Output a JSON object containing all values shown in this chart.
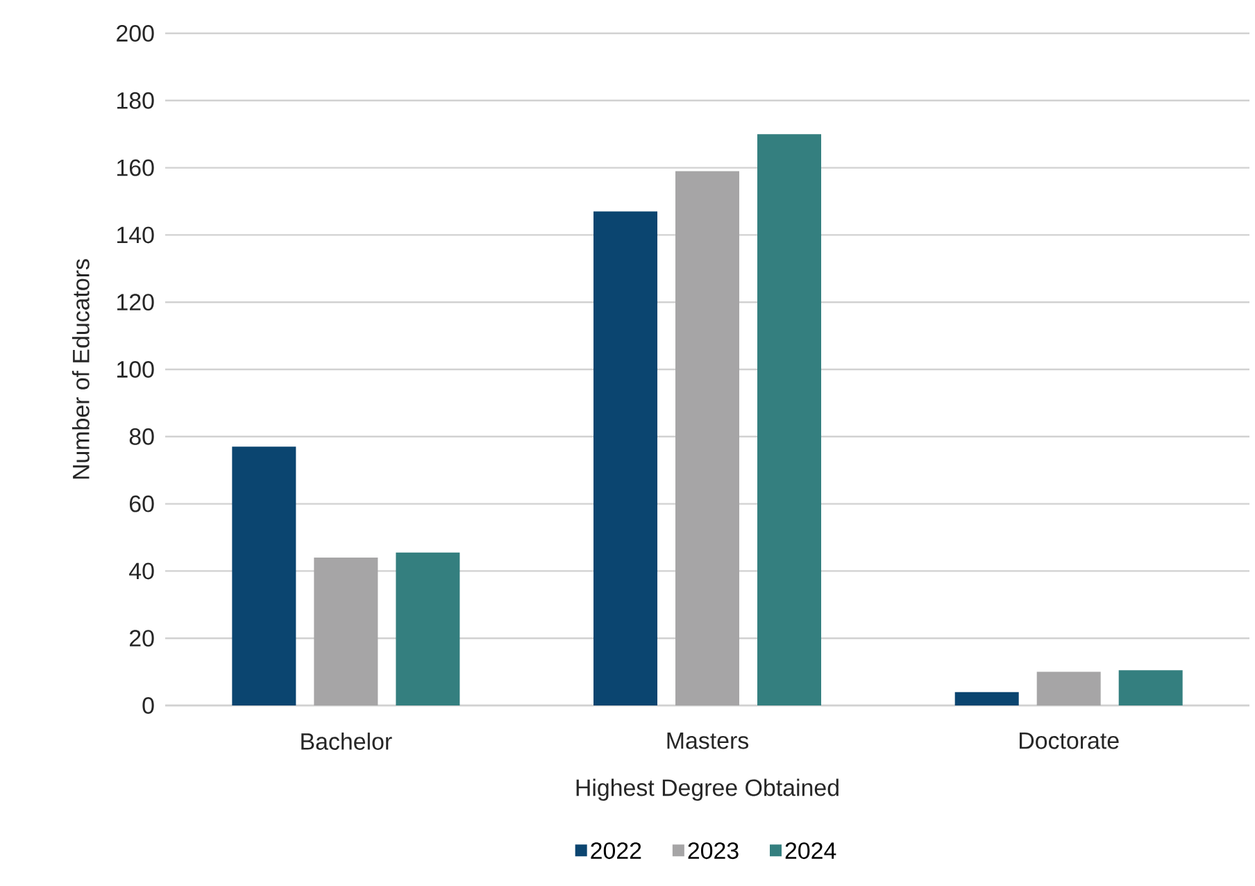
{
  "chart_data": {
    "type": "bar",
    "xlabel": "Highest Degree Obtained",
    "ylabel": "Number of Educators",
    "categories": [
      "Bachelor",
      "Masters",
      "Doctorate"
    ],
    "series": [
      {
        "name": "2022",
        "color": "#0b4570",
        "values": [
          77,
          147,
          4
        ]
      },
      {
        "name": "2023",
        "color": "#a6a5a6",
        "values": [
          44,
          159,
          10
        ]
      },
      {
        "name": "2024",
        "color": "#347f7f",
        "values": [
          45.5,
          170,
          10.5
        ]
      }
    ],
    "ylim": [
      0,
      200
    ],
    "yticks": [
      0,
      20,
      40,
      60,
      80,
      100,
      120,
      140,
      160,
      180,
      200
    ],
    "grid": "y",
    "legend": "bottom"
  }
}
